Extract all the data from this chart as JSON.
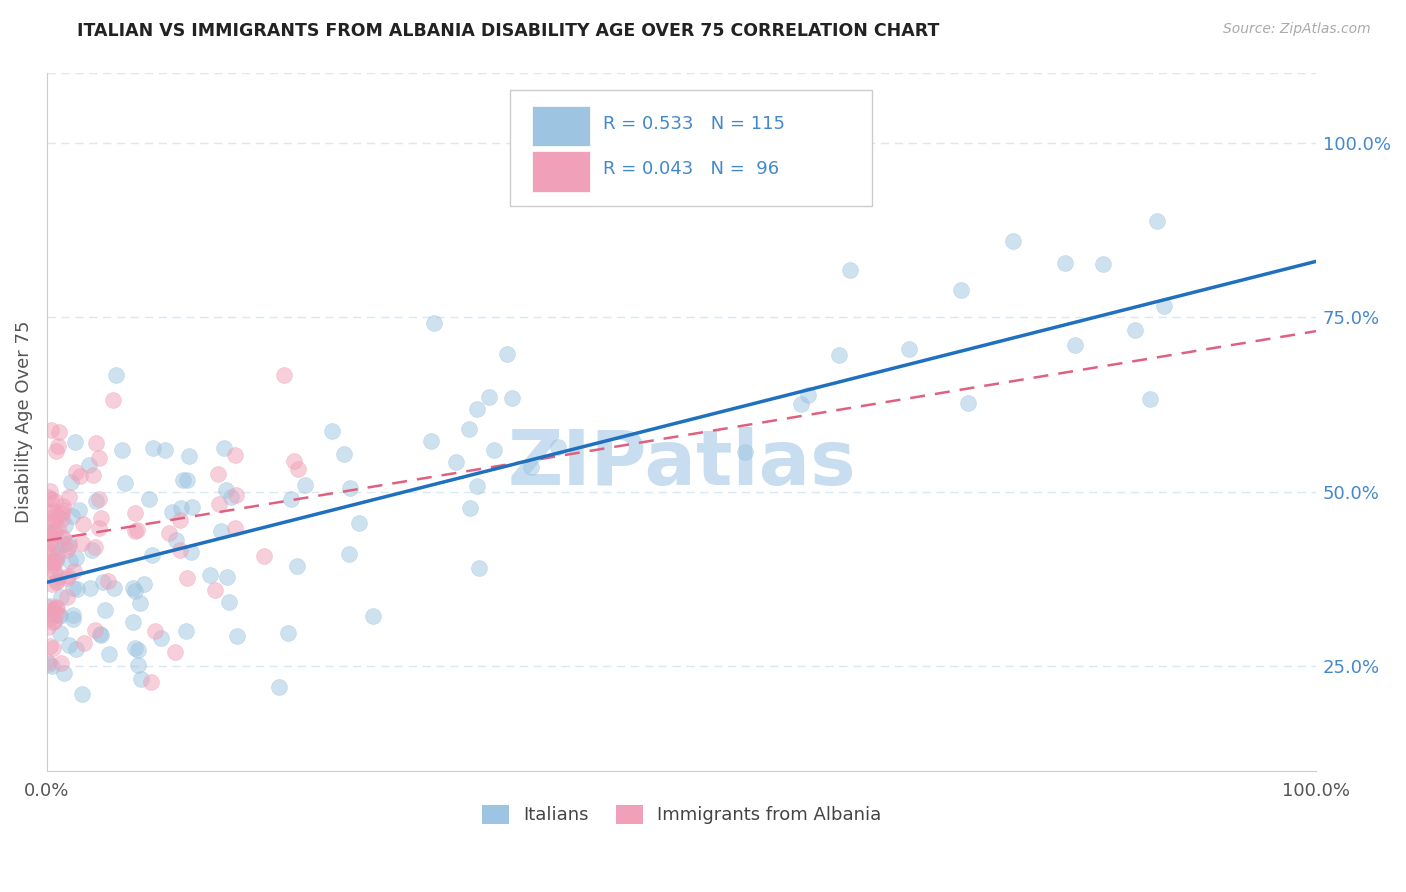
{
  "title": "ITALIAN VS IMMIGRANTS FROM ALBANIA DISABILITY AGE OVER 75 CORRELATION CHART",
  "source": "Source: ZipAtlas.com",
  "ylabel": "Disability Age Over 75",
  "legend_italians": "Italians",
  "legend_albania": "Immigrants from Albania",
  "r_italians": 0.533,
  "n_italians": 115,
  "r_albania": 0.043,
  "n_albania": 96,
  "color_italians": "#9dc4e0",
  "color_albania": "#f0a0b8",
  "color_trend_italians": "#2070c0",
  "color_trend_albania": "#e06080",
  "title_color": "#333333",
  "axis_label_color": "#555555",
  "right_axis_color": "#4488cc",
  "watermark_color": "#c8ddf0",
  "watermark_text": "ZIPatlas",
  "background_color": "#ffffff",
  "grid_color": "#d8e8f4",
  "xmin": 0.0,
  "xmax": 100.0,
  "ymin": 10.0,
  "ymax": 110.0,
  "right_yticks": [
    25.0,
    50.0,
    75.0,
    100.0
  ],
  "trend_italians_x0": 0.0,
  "trend_italians_y0": 37.0,
  "trend_italians_x1": 100.0,
  "trend_italians_y1": 83.0,
  "trend_albania_x0": 0.0,
  "trend_albania_y0": 43.0,
  "trend_albania_x1": 100.0,
  "trend_albania_y1": 73.0,
  "marker_size": 130,
  "alpha_scatter": 0.5
}
